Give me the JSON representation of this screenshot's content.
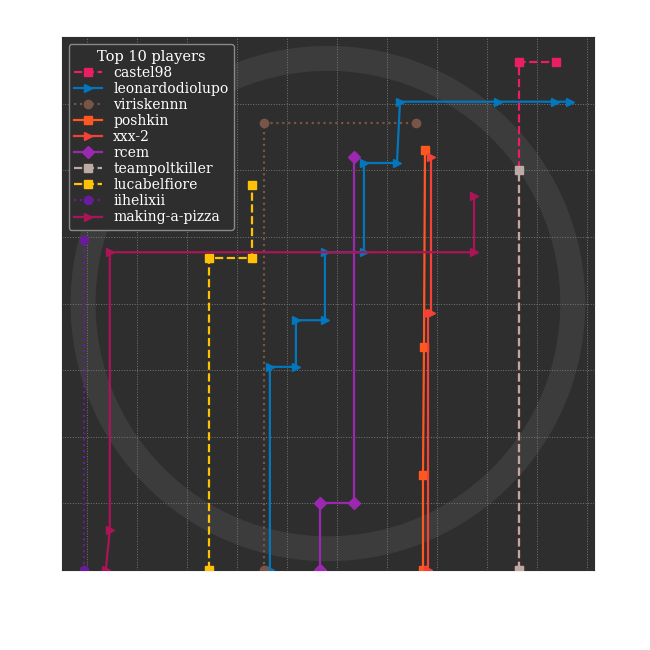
{
  "chart_data": {
    "type": "line",
    "legend_title": "Top 10 players",
    "legend": "upper left",
    "grid": true,
    "tick_labels": false,
    "xlim": [
      0,
      10.64
    ],
    "ylim": [
      0,
      8
    ],
    "xticks": [
      0.5,
      1.5,
      2.5,
      3.5,
      4.5,
      5.5,
      6.5,
      7.5,
      8.5,
      9.5,
      10.5
    ],
    "yticks": [
      1,
      2,
      3,
      4,
      5,
      6,
      7
    ],
    "series": [
      {
        "name": "castel98",
        "color": "#e91e63",
        "line_style": "dashed",
        "marker": "square",
        "x": [
          9.14,
          9.14,
          9.88
        ],
        "values": [
          0,
          7.63,
          7.63
        ]
      },
      {
        "name": "leonardodiolupo",
        "color": "#0277bd",
        "line_style": "solid",
        "marker": "triangle_right",
        "x": [
          4.16,
          4.16,
          4.68,
          4.68,
          5.26,
          5.26,
          6.04,
          6.04,
          6.7,
          6.76,
          8.72,
          9.86,
          10.16
        ],
        "values": [
          0,
          3.05,
          3.05,
          3.75,
          3.75,
          4.77,
          4.77,
          6.11,
          6.11,
          7.03,
          7.03,
          7.03,
          7.03
        ]
      },
      {
        "name": "viriskennn",
        "color": "#795548",
        "line_style": "dotted",
        "marker": "circle",
        "x": [
          4.04,
          4.04,
          7.08
        ],
        "values": [
          0,
          6.71,
          6.71
        ]
      },
      {
        "name": "poshkin",
        "color": "#ff5722",
        "line_style": "solid",
        "marker": "square",
        "x": [
          7.22,
          7.22,
          7.24,
          7.26
        ],
        "values": [
          0,
          1.43,
          3.35,
          6.31
        ]
      },
      {
        "name": "xxx-2",
        "color": "#f44336",
        "line_style": "solid",
        "marker": "triangle_right",
        "x": [
          7.32,
          7.32,
          7.38,
          7.38
        ],
        "values": [
          0,
          3.86,
          3.86,
          6.2
        ]
      },
      {
        "name": "rcem",
        "color": "#9c27b0",
        "line_style": "solid",
        "marker": "diamond",
        "x": [
          5.16,
          5.16,
          5.84,
          5.84
        ],
        "values": [
          0,
          1.0,
          1.0,
          6.2
        ]
      },
      {
        "name": "teampoltkiller",
        "color": "#bcaaa4",
        "line_style": "dashed",
        "marker": "square",
        "x": [
          9.14,
          9.14
        ],
        "values": [
          0,
          6.01
        ]
      },
      {
        "name": "lucabelfiore",
        "color": "#ffc107",
        "line_style": "dashed",
        "marker": "square",
        "x": [
          2.94,
          2.94,
          3.8,
          3.8
        ],
        "values": [
          0,
          4.68,
          4.68,
          5.78
        ]
      },
      {
        "name": "iihelixii",
        "color": "#6a1b9a",
        "line_style": "dotted",
        "marker": "circle",
        "x": [
          0.44,
          0.44
        ],
        "values": [
          0,
          4.95
        ]
      },
      {
        "name": "making-a-pizza",
        "color": "#ad1457",
        "line_style": "solid",
        "marker": "triangle_right",
        "x": [
          0.88,
          0.96,
          0.96,
          8.24,
          8.24
        ],
        "values": [
          0,
          0.6,
          4.77,
          4.77,
          5.62
        ]
      }
    ]
  }
}
